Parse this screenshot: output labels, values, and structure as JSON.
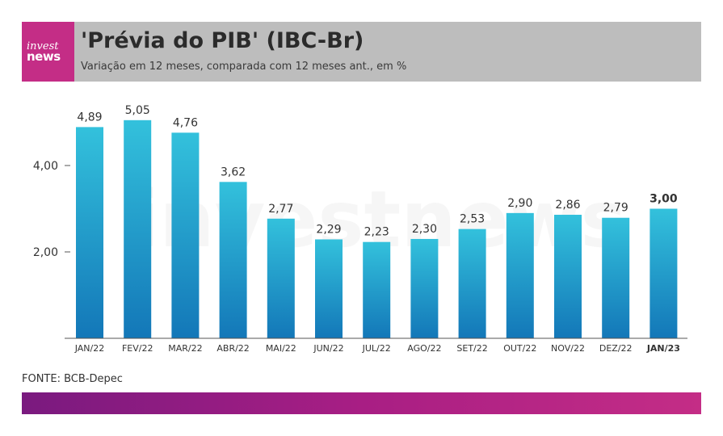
{
  "logo": {
    "line1": "invest",
    "line2": "news"
  },
  "header": {
    "title": "'Prévia do PIB' (IBC-Br)",
    "subtitle": "Variação em 12 meses, comparada com 12 meses ant., em %"
  },
  "watermark": "investnews",
  "source": "FONTE: BCB-Depec",
  "colors": {
    "bar_top": "#33c1dc",
    "bar_bottom": "#1377b8",
    "header_bg": "#bdbdbd",
    "logo_bg": "#c42d86"
  },
  "chart_data": {
    "type": "bar",
    "title": "'Prévia do PIB' (IBC-Br)",
    "subtitle": "Variação em 12 meses, comparada com 12 meses ant., em %",
    "categories": [
      "JAN/22",
      "FEV/22",
      "MAR/22",
      "ABR/22",
      "MAI/22",
      "JUN/22",
      "JUL/22",
      "AGO/22",
      "SET/22",
      "OUT/22",
      "NOV/22",
      "DEZ/22",
      "JAN/23"
    ],
    "values": [
      4.89,
      5.05,
      4.76,
      3.62,
      2.77,
      2.29,
      2.23,
      2.3,
      2.53,
      2.9,
      2.86,
      2.79,
      3.0
    ],
    "value_labels": [
      "4,89",
      "5,05",
      "4,76",
      "3,62",
      "2,77",
      "2,29",
      "2,23",
      "2,30",
      "2,53",
      "2,90",
      "2,86",
      "2,79",
      "3,00"
    ],
    "highlight": "JAN/23",
    "yticks": [
      2.0,
      4.0
    ],
    "ytick_labels": [
      "2,00",
      "4,00"
    ],
    "ylim": [
      0,
      5.3
    ],
    "grid": false,
    "legend": "none"
  }
}
